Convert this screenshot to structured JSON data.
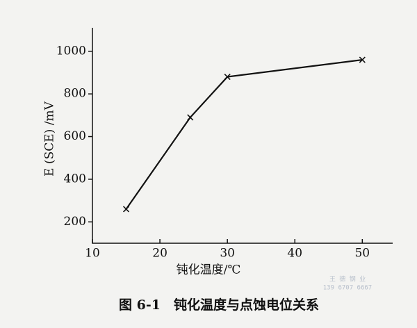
{
  "chart_data": {
    "type": "line",
    "ylabel": "E (SCE) /mV",
    "xlabel": "钝化温度/℃",
    "caption": "图 6-1　钝化温度与点蚀电位关系",
    "watermark": [
      "王 德 钢 业",
      "139 6707 6667"
    ],
    "x": [
      15,
      24.5,
      30,
      50
    ],
    "series": [
      {
        "color": "#111111",
        "values": [
          260,
          690,
          880,
          960
        ]
      }
    ],
    "xlim": [
      10,
      54.5
    ],
    "xticks": [
      10,
      20,
      30,
      40,
      50
    ],
    "ylim": [
      100,
      1110
    ],
    "yticks": [
      200,
      400,
      600,
      800,
      1000
    ]
  }
}
